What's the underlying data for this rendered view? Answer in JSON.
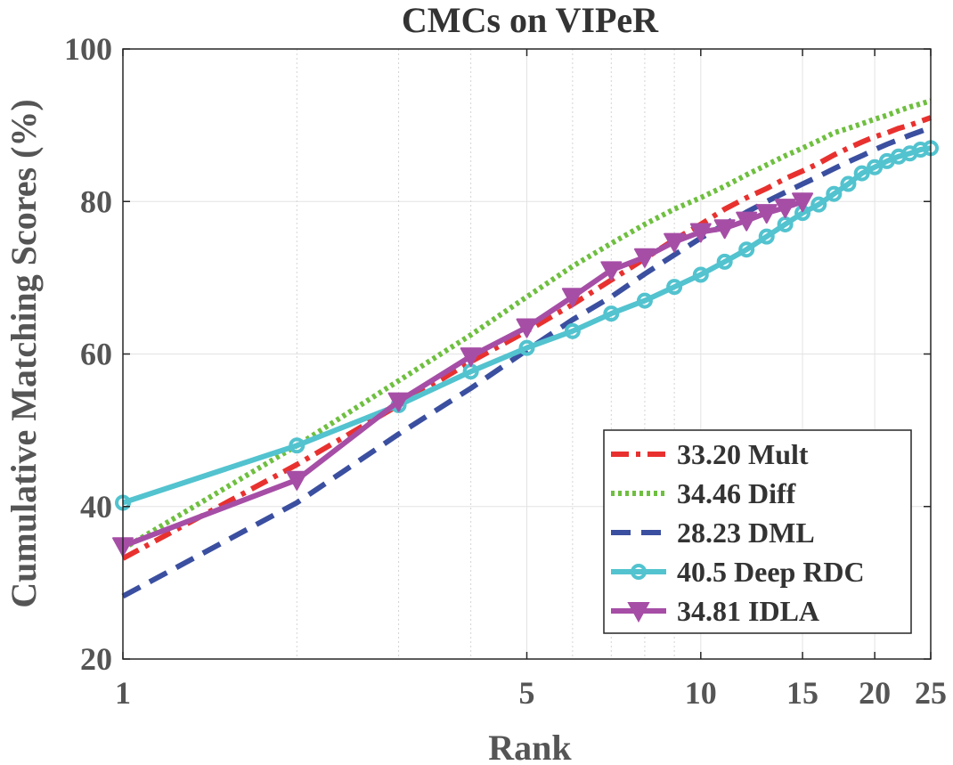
{
  "chart_data": {
    "type": "line",
    "title": "CMCs on VIPeR",
    "xlabel": "Rank",
    "ylabel": "Cumulative Matching Scores (%)",
    "xscale": "log",
    "xlim": [
      1,
      25
    ],
    "ylim": [
      20,
      100
    ],
    "xticks": [
      1,
      5,
      10,
      15,
      20,
      25
    ],
    "yticks": [
      20,
      40,
      60,
      80,
      100
    ],
    "grid": true,
    "legend_position": "bottom-right",
    "series": [
      {
        "name": "33.20 Mult",
        "color": "#e8312f",
        "style": "dashdot",
        "marker": "none",
        "x": [
          1,
          2,
          3,
          4,
          5,
          6,
          7,
          8,
          9,
          10,
          11,
          12,
          13,
          14,
          15,
          16,
          17,
          18,
          19,
          20,
          21,
          22,
          23,
          24,
          25
        ],
        "y": [
          33.2,
          45.5,
          53.3,
          59,
          63,
          66.5,
          69.7,
          72.5,
          75,
          77,
          79,
          80.5,
          81.7,
          83,
          84,
          85,
          86.1,
          87,
          87.8,
          88.5,
          89,
          89.6,
          90,
          90.5,
          91
        ]
      },
      {
        "name": "34.46 Diff",
        "color": "#6fbf40",
        "style": "dotted",
        "marker": "none",
        "x": [
          1,
          2,
          3,
          4,
          5,
          6,
          7,
          8,
          9,
          10,
          11,
          12,
          13,
          14,
          15,
          16,
          17,
          18,
          19,
          20,
          21,
          22,
          23,
          24,
          25
        ],
        "y": [
          34.46,
          48,
          56.5,
          62.5,
          67.5,
          71.5,
          74.5,
          77,
          79,
          80.5,
          82,
          83.5,
          84.8,
          86,
          87,
          88,
          89,
          89.6,
          90.2,
          90.8,
          91.3,
          91.9,
          92.4,
          92.8,
          93.2
        ]
      },
      {
        "name": "28.23 DML",
        "color": "#3b4fa0",
        "style": "dashed",
        "marker": "none",
        "x": [
          1,
          2,
          3,
          4,
          5,
          6,
          7,
          8,
          9,
          10,
          11,
          12,
          13,
          14,
          15,
          16,
          17,
          18,
          19,
          20,
          21,
          22,
          23,
          24,
          25
        ],
        "y": [
          28.23,
          40.5,
          49.5,
          55.5,
          60.5,
          64.5,
          67.5,
          70.5,
          73,
          75.2,
          77,
          78.6,
          80,
          81.2,
          82.3,
          83.3,
          84.3,
          85.2,
          86,
          86.8,
          87.5,
          88.1,
          88.7,
          89.2,
          89.7
        ]
      },
      {
        "name": "40.5 Deep RDC",
        "color": "#52c3cf",
        "style": "solid",
        "marker": "circle",
        "x": [
          1,
          2,
          3,
          4,
          5,
          6,
          7,
          8,
          9,
          10,
          11,
          12,
          13,
          14,
          15,
          16,
          17,
          18,
          19,
          20,
          21,
          22,
          23,
          24,
          25
        ],
        "y": [
          40.5,
          48,
          53.3,
          57.7,
          60.8,
          63,
          65.3,
          67,
          68.8,
          70.4,
          72.1,
          73.7,
          75.4,
          77,
          78.5,
          79.6,
          81,
          82.3,
          83.7,
          84.5,
          85.3,
          85.9,
          86.3,
          86.8,
          87
        ]
      },
      {
        "name": "34.81 IDLA",
        "color": "#a64ea6",
        "style": "solid",
        "marker": "triangle-down",
        "x": [
          1,
          2,
          3,
          4,
          5,
          6,
          7,
          8,
          9,
          10,
          11,
          12,
          13,
          14,
          15
        ],
        "y": [
          34.81,
          43.5,
          53.8,
          59.7,
          63.5,
          67.5,
          71,
          72.7,
          74.7,
          76,
          76.5,
          77.5,
          78.5,
          79.2,
          80
        ]
      }
    ]
  }
}
